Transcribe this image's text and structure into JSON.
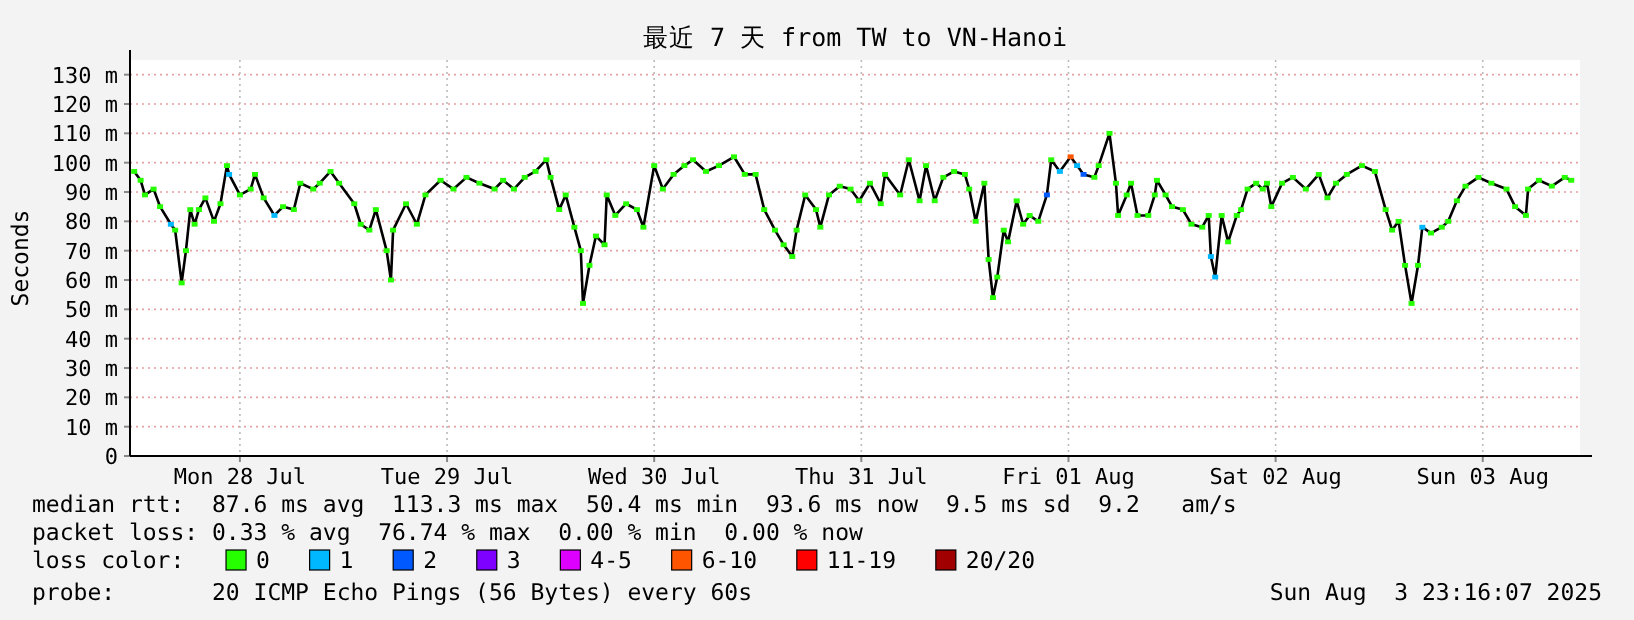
{
  "chart_data": {
    "type": "line",
    "title": "最近 7 天 from TW to VN-Hanoi",
    "ylabel": "Seconds",
    "xlim": [
      "2025-07-27T23:16",
      "2025-08-03T23:16"
    ],
    "xticks": [
      {
        "value": "2025-07-28T12:00",
        "label": "Mon 28 Jul"
      },
      {
        "value": "2025-07-29T12:00",
        "label": "Tue 29 Jul"
      },
      {
        "value": "2025-07-30T12:00",
        "label": "Wed 30 Jul"
      },
      {
        "value": "2025-07-31T12:00",
        "label": "Thu 31 Jul"
      },
      {
        "value": "2025-08-01T12:00",
        "label": "Fri 01 Aug"
      },
      {
        "value": "2025-08-02T12:00",
        "label": "Sat 02 Aug"
      },
      {
        "value": "2025-08-03T12:00",
        "label": "Sun 03 Aug"
      }
    ],
    "ylim": [
      0,
      135
    ],
    "yticks": [
      0,
      {
        "value": 10,
        "label": "10 m"
      },
      {
        "value": 20,
        "label": "20 m"
      },
      {
        "value": 30,
        "label": "30 m"
      },
      {
        "value": 40,
        "label": "40 m"
      },
      {
        "value": 50,
        "label": "50 m"
      },
      {
        "value": 60,
        "label": "60 m"
      },
      {
        "value": 70,
        "label": "70 m"
      },
      {
        "value": 80,
        "label": "80 m"
      },
      {
        "value": 90,
        "label": "90 m"
      },
      {
        "value": 100,
        "label": "100 m"
      },
      {
        "value": 110,
        "label": "110 m"
      },
      {
        "value": 120,
        "label": "120 m"
      },
      {
        "value": 130,
        "label": "130 m"
      }
    ],
    "grid": true,
    "legend": "bottom",
    "legend_title": "loss color:",
    "marker": "square",
    "series": [
      {
        "color": "#000000",
        "x": [
          "2025-07-27T23:45",
          "2025-07-28T00:30",
          "2025-07-28T01:00",
          "2025-07-28T02:00",
          "2025-07-28T02:45",
          "2025-07-28T04:00",
          "2025-07-28T04:30",
          "2025-07-28T05:15",
          "2025-07-28T05:45",
          "2025-07-28T06:15",
          "2025-07-28T06:45",
          "2025-07-28T07:15",
          "2025-07-28T08:00",
          "2025-07-28T09:00",
          "2025-07-28T09:45",
          "2025-07-28T10:30",
          "2025-07-28T10:45",
          "2025-07-28T12:00",
          "2025-07-28T13:15",
          "2025-07-28T13:45",
          "2025-07-28T14:45",
          "2025-07-28T16:00",
          "2025-07-28T17:00",
          "2025-07-28T18:15",
          "2025-07-28T19:00",
          "2025-07-28T20:30",
          "2025-07-28T21:15",
          "2025-07-28T22:30",
          "2025-07-28T23:30",
          "2025-07-29T01:15",
          "2025-07-29T02:00",
          "2025-07-29T03:00",
          "2025-07-29T03:45",
          "2025-07-29T05:00",
          "2025-07-29T05:30",
          "2025-07-29T05:45",
          "2025-07-29T07:15",
          "2025-07-29T08:30",
          "2025-07-29T09:30",
          "2025-07-29T11:15",
          "2025-07-29T12:45",
          "2025-07-29T14:15",
          "2025-07-29T15:45",
          "2025-07-29T17:30",
          "2025-07-29T18:30",
          "2025-07-29T19:45",
          "2025-07-29T21:00",
          "2025-07-29T22:15",
          "2025-07-29T23:30",
          "2025-07-30T00:00",
          "2025-07-30T01:00",
          "2025-07-30T01:45",
          "2025-07-30T02:45",
          "2025-07-30T03:30",
          "2025-07-30T03:45",
          "2025-07-30T04:30",
          "2025-07-30T05:15",
          "2025-07-30T06:15",
          "2025-07-30T06:30",
          "2025-07-30T07:30",
          "2025-07-30T08:45",
          "2025-07-30T10:00",
          "2025-07-30T10:45",
          "2025-07-30T12:00",
          "2025-07-30T13:00",
          "2025-07-30T14:15",
          "2025-07-30T15:30",
          "2025-07-30T16:30",
          "2025-07-30T18:00",
          "2025-07-30T19:30",
          "2025-07-30T21:15",
          "2025-07-30T22:30",
          "2025-07-30T23:45",
          "2025-07-31T00:45",
          "2025-07-31T02:00",
          "2025-07-31T03:00",
          "2025-07-31T04:00",
          "2025-07-31T04:30",
          "2025-07-31T05:30",
          "2025-07-31T06:45",
          "2025-07-31T07:15",
          "2025-07-31T08:15",
          "2025-07-31T09:30",
          "2025-07-31T10:45",
          "2025-07-31T11:45",
          "2025-07-31T13:00",
          "2025-07-31T14:15",
          "2025-07-31T14:45",
          "2025-07-31T16:30",
          "2025-07-31T17:30",
          "2025-07-31T18:45",
          "2025-07-31T19:30",
          "2025-07-31T20:30",
          "2025-07-31T21:30",
          "2025-07-31T22:45",
          "2025-08-01T00:00",
          "2025-08-01T00:30",
          "2025-08-01T01:15",
          "2025-08-01T02:15",
          "2025-08-01T02:45",
          "2025-08-01T03:15",
          "2025-08-01T03:45",
          "2025-08-01T04:30",
          "2025-08-01T05:00",
          "2025-08-01T06:00",
          "2025-08-01T06:45",
          "2025-08-01T07:30",
          "2025-08-01T08:30",
          "2025-08-01T09:30",
          "2025-08-01T10:00",
          "2025-08-01T11:00",
          "2025-08-01T12:15",
          "2025-08-01T13:00",
          "2025-08-01T13:45",
          "2025-08-01T15:00",
          "2025-08-01T15:30",
          "2025-08-01T16:45",
          "2025-08-01T17:30",
          "2025-08-01T17:45",
          "2025-08-01T18:45",
          "2025-08-01T19:15",
          "2025-08-01T20:00",
          "2025-08-01T21:15",
          "2025-08-01T22:00",
          "2025-08-01T22:15",
          "2025-08-01T23:15",
          "2025-08-02T00:00",
          "2025-08-02T01:15",
          "2025-08-02T02:15",
          "2025-08-02T03:30",
          "2025-08-02T04:15",
          "2025-08-02T04:30",
          "2025-08-02T05:00",
          "2025-08-02T05:45",
          "2025-08-02T06:30",
          "2025-08-02T07:30",
          "2025-08-02T08:00",
          "2025-08-02T08:45",
          "2025-08-02T09:45",
          "2025-08-02T10:30",
          "2025-08-02T11:00",
          "2025-08-02T11:30",
          "2025-08-02T12:45",
          "2025-08-02T14:00",
          "2025-08-02T15:30",
          "2025-08-02T17:00",
          "2025-08-02T18:00",
          "2025-08-02T19:00",
          "2025-08-02T20:15",
          "2025-08-02T22:00",
          "2025-08-02T23:30",
          "2025-08-03T00:45",
          "2025-08-03T01:30",
          "2025-08-03T02:15",
          "2025-08-03T03:00",
          "2025-08-03T03:45",
          "2025-08-03T04:30",
          "2025-08-03T05:00",
          "2025-08-03T06:00",
          "2025-08-03T07:15",
          "2025-08-03T08:00",
          "2025-08-03T09:00",
          "2025-08-03T10:00",
          "2025-08-03T11:30",
          "2025-08-03T13:00",
          "2025-08-03T14:45",
          "2025-08-03T15:45",
          "2025-08-03T17:00",
          "2025-08-03T17:15",
          "2025-08-03T18:30",
          "2025-08-03T20:00",
          "2025-08-03T21:30",
          "2025-08-03T22:15"
        ],
        "values": [
          97,
          94,
          89,
          91,
          85,
          79,
          77,
          59,
          70,
          84,
          79,
          84,
          88,
          80,
          86,
          99,
          96,
          89,
          91,
          96,
          88,
          82,
          85,
          84,
          93,
          91,
          93,
          97,
          93,
          86,
          79,
          77,
          84,
          70,
          60,
          77,
          86,
          79,
          89,
          94,
          91,
          95,
          93,
          91,
          94,
          91,
          95,
          97,
          101,
          95,
          84,
          89,
          78,
          70,
          52,
          65,
          75,
          72,
          89,
          82,
          86,
          84,
          78,
          99,
          91,
          96,
          99,
          101,
          97,
          99,
          102,
          96,
          96,
          84,
          77,
          72,
          68,
          77,
          89,
          84,
          78,
          89,
          92,
          91,
          87,
          93,
          86,
          96,
          89,
          101,
          87,
          99,
          87,
          95,
          97,
          96,
          91,
          80,
          93,
          67,
          54,
          61,
          77,
          73,
          87,
          79,
          82,
          80,
          89,
          101,
          97,
          102,
          99,
          96,
          95,
          99,
          110,
          93,
          82,
          89,
          93,
          82,
          82,
          89,
          94,
          89,
          85,
          84,
          79,
          78,
          82,
          68,
          61,
          82,
          73,
          82,
          84,
          91,
          93,
          91,
          93,
          85,
          93,
          95,
          91,
          96,
          88,
          93,
          96,
          99,
          97,
          84,
          77,
          80,
          65,
          52,
          65,
          78,
          76,
          78,
          80,
          87,
          92,
          95,
          93,
          91,
          85,
          82,
          91,
          94,
          92,
          95,
          94
        ],
        "colors": [
          "#26ff00",
          "#26ff00",
          "#26ff00",
          "#26ff00",
          "#26ff00",
          "#00b8ff",
          "#26ff00",
          "#26ff00",
          "#26ff00",
          "#26ff00",
          "#26ff00",
          "#26ff00",
          "#26ff00",
          "#26ff00",
          "#26ff00",
          "#26ff00",
          "#00b8ff",
          "#26ff00",
          "#26ff00",
          "#26ff00",
          "#26ff00",
          "#00b8ff",
          "#26ff00",
          "#26ff00",
          "#26ff00",
          "#26ff00",
          "#26ff00",
          "#26ff00",
          "#26ff00",
          "#26ff00",
          "#26ff00",
          "#26ff00",
          "#26ff00",
          "#26ff00",
          "#26ff00",
          "#26ff00",
          "#26ff00",
          "#26ff00",
          "#26ff00",
          "#26ff00",
          "#26ff00",
          "#26ff00",
          "#26ff00",
          "#26ff00",
          "#26ff00",
          "#26ff00",
          "#26ff00",
          "#26ff00",
          "#26ff00",
          "#26ff00",
          "#26ff00",
          "#26ff00",
          "#26ff00",
          "#26ff00",
          "#26ff00",
          "#26ff00",
          "#26ff00",
          "#26ff00",
          "#26ff00",
          "#26ff00",
          "#26ff00",
          "#26ff00",
          "#26ff00",
          "#26ff00",
          "#26ff00",
          "#26ff00",
          "#26ff00",
          "#26ff00",
          "#26ff00",
          "#26ff00",
          "#26ff00",
          "#26ff00",
          "#26ff00",
          "#26ff00",
          "#26ff00",
          "#26ff00",
          "#26ff00",
          "#26ff00",
          "#26ff00",
          "#26ff00",
          "#26ff00",
          "#26ff00",
          "#26ff00",
          "#26ff00",
          "#26ff00",
          "#26ff00",
          "#26ff00",
          "#26ff00",
          "#26ff00",
          "#26ff00",
          "#26ff00",
          "#26ff00",
          "#26ff00",
          "#26ff00",
          "#26ff00",
          "#26ff00",
          "#26ff00",
          "#26ff00",
          "#26ff00",
          "#26ff00",
          "#26ff00",
          "#26ff00",
          "#26ff00",
          "#26ff00",
          "#26ff00",
          "#26ff00",
          "#26ff00",
          "#26ff00",
          "#0059ff",
          "#26ff00",
          "#00b8ff",
          "#ff5500",
          "#00b8ff",
          "#0059ff",
          "#26ff00",
          "#26ff00",
          "#26ff00",
          "#26ff00",
          "#26ff00",
          "#26ff00",
          "#26ff00",
          "#26ff00",
          "#26ff00",
          "#26ff00",
          "#26ff00",
          "#26ff00",
          "#26ff00",
          "#26ff00",
          "#26ff00",
          "#26ff00",
          "#26ff00",
          "#00b8ff",
          "#00b8ff",
          "#26ff00",
          "#26ff00",
          "#26ff00",
          "#26ff00",
          "#26ff00",
          "#26ff00",
          "#26ff00",
          "#26ff00",
          "#26ff00",
          "#26ff00",
          "#26ff00",
          "#26ff00",
          "#26ff00",
          "#26ff00",
          "#26ff00",
          "#26ff00",
          "#26ff00",
          "#26ff00",
          "#26ff00",
          "#26ff00",
          "#26ff00",
          "#26ff00",
          "#26ff00",
          "#26ff00",
          "#00b8ff",
          "#26ff00",
          "#26ff00",
          "#26ff00",
          "#26ff00",
          "#26ff00",
          "#26ff00",
          "#26ff00",
          "#26ff00",
          "#26ff00",
          "#26ff00",
          "#26ff00",
          "#26ff00",
          "#26ff00",
          "#26ff00",
          "#26ff00"
        ]
      },
      {
        "name": "0",
        "color": "#26ff00"
      },
      {
        "name": "1",
        "color": "#00b8ff"
      },
      {
        "name": "2",
        "color": "#0059ff"
      },
      {
        "name": "3",
        "color": "#7e00ff"
      },
      {
        "name": "4-5",
        "color": "#dd00ff"
      },
      {
        "name": "6-10",
        "color": "#ff5500"
      },
      {
        "name": "11-19",
        "color": "#ff0000"
      },
      {
        "name": "20/20",
        "color": "#a00000"
      }
    ],
    "annotations": [
      "median rtt:  87.6 ms avg  113.3 ms max  50.4 ms min  93.6 ms now  9.5 ms sd  9.2   am/s",
      "packet loss: 0.33 % avg  76.74 % max  0.00 % min  0.00 % now",
      "probe:       20 ICMP Echo Pings (56 Bytes) every 60s",
      "Sun Aug  3 23:16:07 2025"
    ]
  }
}
